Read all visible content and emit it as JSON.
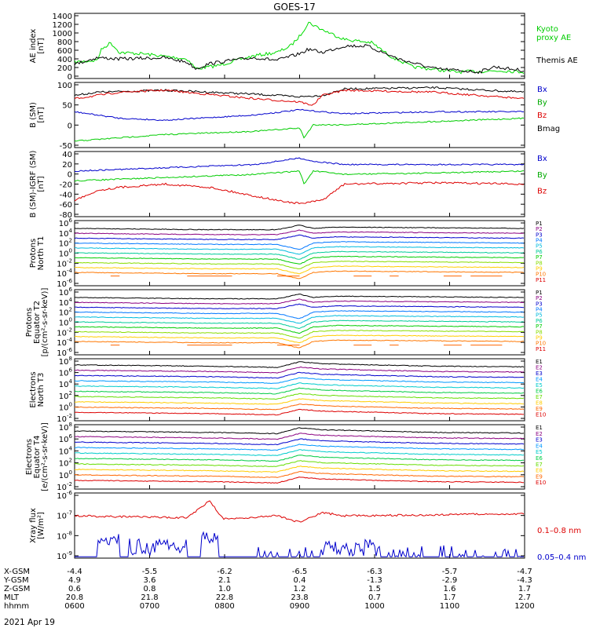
{
  "title": "GOES-17",
  "date": "2021 Apr 19",
  "colors": {
    "black": "#000000",
    "blue": "#0000cc",
    "green": "#00dd00",
    "red": "#dd0000",
    "orange": "#ff6600",
    "navy": "#000080",
    "purple": "#4b0082"
  },
  "panels": [
    {
      "ylabel": [
        "AE index",
        "[nT]"
      ],
      "ticks": [
        "1400",
        "1200",
        "1000",
        "800",
        "600",
        "400",
        "200",
        "0"
      ],
      "ylim": [
        0,
        1400
      ],
      "legend": [
        {
          "text": "Kyoto",
          "color": "#00cc00"
        },
        {
          "text": "proxy AE",
          "color": "#00cc00"
        },
        {
          "text": "Themis AE",
          "color": "#000000"
        }
      ]
    },
    {
      "ylabel": [
        "B (SM)",
        "[nT]"
      ],
      "ticks": [
        "100",
        "50",
        "0",
        "-50"
      ],
      "ylim": [
        -50,
        100
      ],
      "legend": [
        {
          "text": "Bx",
          "color": "#0000cc"
        },
        {
          "text": "By",
          "color": "#00aa00"
        },
        {
          "text": "Bz",
          "color": "#dd0000"
        },
        {
          "text": "Bmag",
          "color": "#000000"
        }
      ]
    },
    {
      "ylabel": [
        "B (SM)-IGRF (SM)",
        "[nT]"
      ],
      "ticks": [
        "40",
        "20",
        "0",
        "-20",
        "-40",
        "-60",
        "-80"
      ],
      "ylim": [
        -80,
        40
      ],
      "legend": [
        {
          "text": "Bx",
          "color": "#0000cc"
        },
        {
          "text": "By",
          "color": "#00aa00"
        },
        {
          "text": "Bz",
          "color": "#dd0000"
        }
      ]
    },
    {
      "ylabel": [
        "Protons",
        "North T1"
      ],
      "ticks": [
        "10^6",
        "10^4",
        "10^2",
        "10^0",
        "10^-2",
        "10^-4",
        "10^-6"
      ],
      "legend_small": [
        "P1",
        "P2",
        "P3",
        "P4",
        "P5",
        "P6",
        "P7",
        "P8",
        "P9",
        "P10",
        "P11"
      ]
    },
    {
      "ylabel": [
        "Protons",
        "Equator T2",
        "[p/(cm²-s-sr-keV)]"
      ],
      "ticks": [
        "10^6",
        "10^4",
        "10^2",
        "10^0",
        "10^-2",
        "10^-4",
        "10^-6"
      ],
      "legend_small": [
        "P1",
        "P2",
        "P3",
        "P4",
        "P5",
        "P6",
        "P7",
        "P8",
        "P9",
        "P10",
        "P11"
      ]
    },
    {
      "ylabel": [
        "Electrons",
        "North T3"
      ],
      "ticks": [
        "10^8",
        "10^6",
        "10^4",
        "10^2",
        "10^0",
        "10^-2"
      ],
      "legend_small": [
        "E1",
        "E2",
        "E3",
        "E4",
        "E5",
        "E6",
        "E7",
        "E8",
        "E9",
        "E10"
      ]
    },
    {
      "ylabel": [
        "Electrons",
        "Equator T4",
        "[e/(cm²-s-sr-keV)]"
      ],
      "ticks": [
        "10^8",
        "10^6",
        "10^4",
        "10^2",
        "10^0",
        "10^-2"
      ],
      "legend_small": [
        "E1",
        "E2",
        "E3",
        "E4",
        "E5",
        "E6",
        "E7",
        "E8",
        "E9",
        "E10"
      ]
    },
    {
      "ylabel": [
        "Xray flux",
        "[W/m²]"
      ],
      "ticks": [
        "10^-6",
        "10^-7",
        "10^-8",
        "10^-9"
      ],
      "legend": [
        {
          "text": "0.1–0.8 nm",
          "color": "#dd0000"
        },
        {
          "text": "0.05–0.4 nm",
          "color": "#0000cc"
        }
      ]
    }
  ],
  "band_colors_p": [
    "#000000",
    "#8b0080",
    "#0000cc",
    "#0077ff",
    "#00bbdd",
    "#00cc99",
    "#00cc00",
    "#88dd00",
    "#ffcc00",
    "#ff7700",
    "#dd0000"
  ],
  "band_colors_e": [
    "#000000",
    "#8b0080",
    "#0000cc",
    "#0099ff",
    "#00cccc",
    "#00cc44",
    "#66dd00",
    "#ffcc00",
    "#ff6600",
    "#dd0000"
  ],
  "x_labels": {
    "rows": [
      {
        "name": "X-GSM",
        "values": [
          "-4.4",
          "-5.5",
          "-6.2",
          "-6.5",
          "-6.3",
          "-5.7",
          "-4.7"
        ]
      },
      {
        "name": "Y-GSM",
        "values": [
          "4.9",
          "3.6",
          "2.1",
          "0.4",
          "-1.3",
          "-2.9",
          "-4.3"
        ]
      },
      {
        "name": "Z-GSM",
        "values": [
          "0.6",
          "0.8",
          "1.0",
          "1.2",
          "1.5",
          "1.6",
          "1.7"
        ]
      },
      {
        "name": "MLT",
        "values": [
          "20.8",
          "21.8",
          "22.8",
          "23.8",
          "0.7",
          "1.7",
          "2.7"
        ]
      },
      {
        "name": "hhmm",
        "values": [
          "0600",
          "0700",
          "0800",
          "0900",
          "1000",
          "1100",
          "1200"
        ]
      }
    ]
  },
  "chart_data": {
    "type": "line",
    "title": "GOES-17",
    "x": [
      "0600",
      "0700",
      "0800",
      "0900",
      "1000",
      "1100",
      "1200"
    ],
    "series": [
      {
        "name": "Kyoto proxy AE",
        "unit": "nT",
        "values": [
          420,
          500,
          300,
          1250,
          850,
          150,
          200
        ]
      },
      {
        "name": "Themis AE",
        "unit": "nT",
        "values": [
          430,
          480,
          280,
          650,
          680,
          160,
          250
        ]
      },
      {
        "name": "Bx",
        "unit": "nT",
        "values": [
          30,
          25,
          22,
          38,
          30,
          35,
          35
        ]
      },
      {
        "name": "By",
        "unit": "nT",
        "values": [
          -35,
          -25,
          -15,
          -5,
          5,
          10,
          18
        ]
      },
      {
        "name": "Bz",
        "unit": "nT",
        "values": [
          80,
          85,
          60,
          40,
          85,
          80,
          70
        ]
      },
      {
        "name": "Bmag",
        "unit": "nT",
        "values": [
          80,
          85,
          70,
          70,
          90,
          90,
          80
        ]
      }
    ]
  }
}
